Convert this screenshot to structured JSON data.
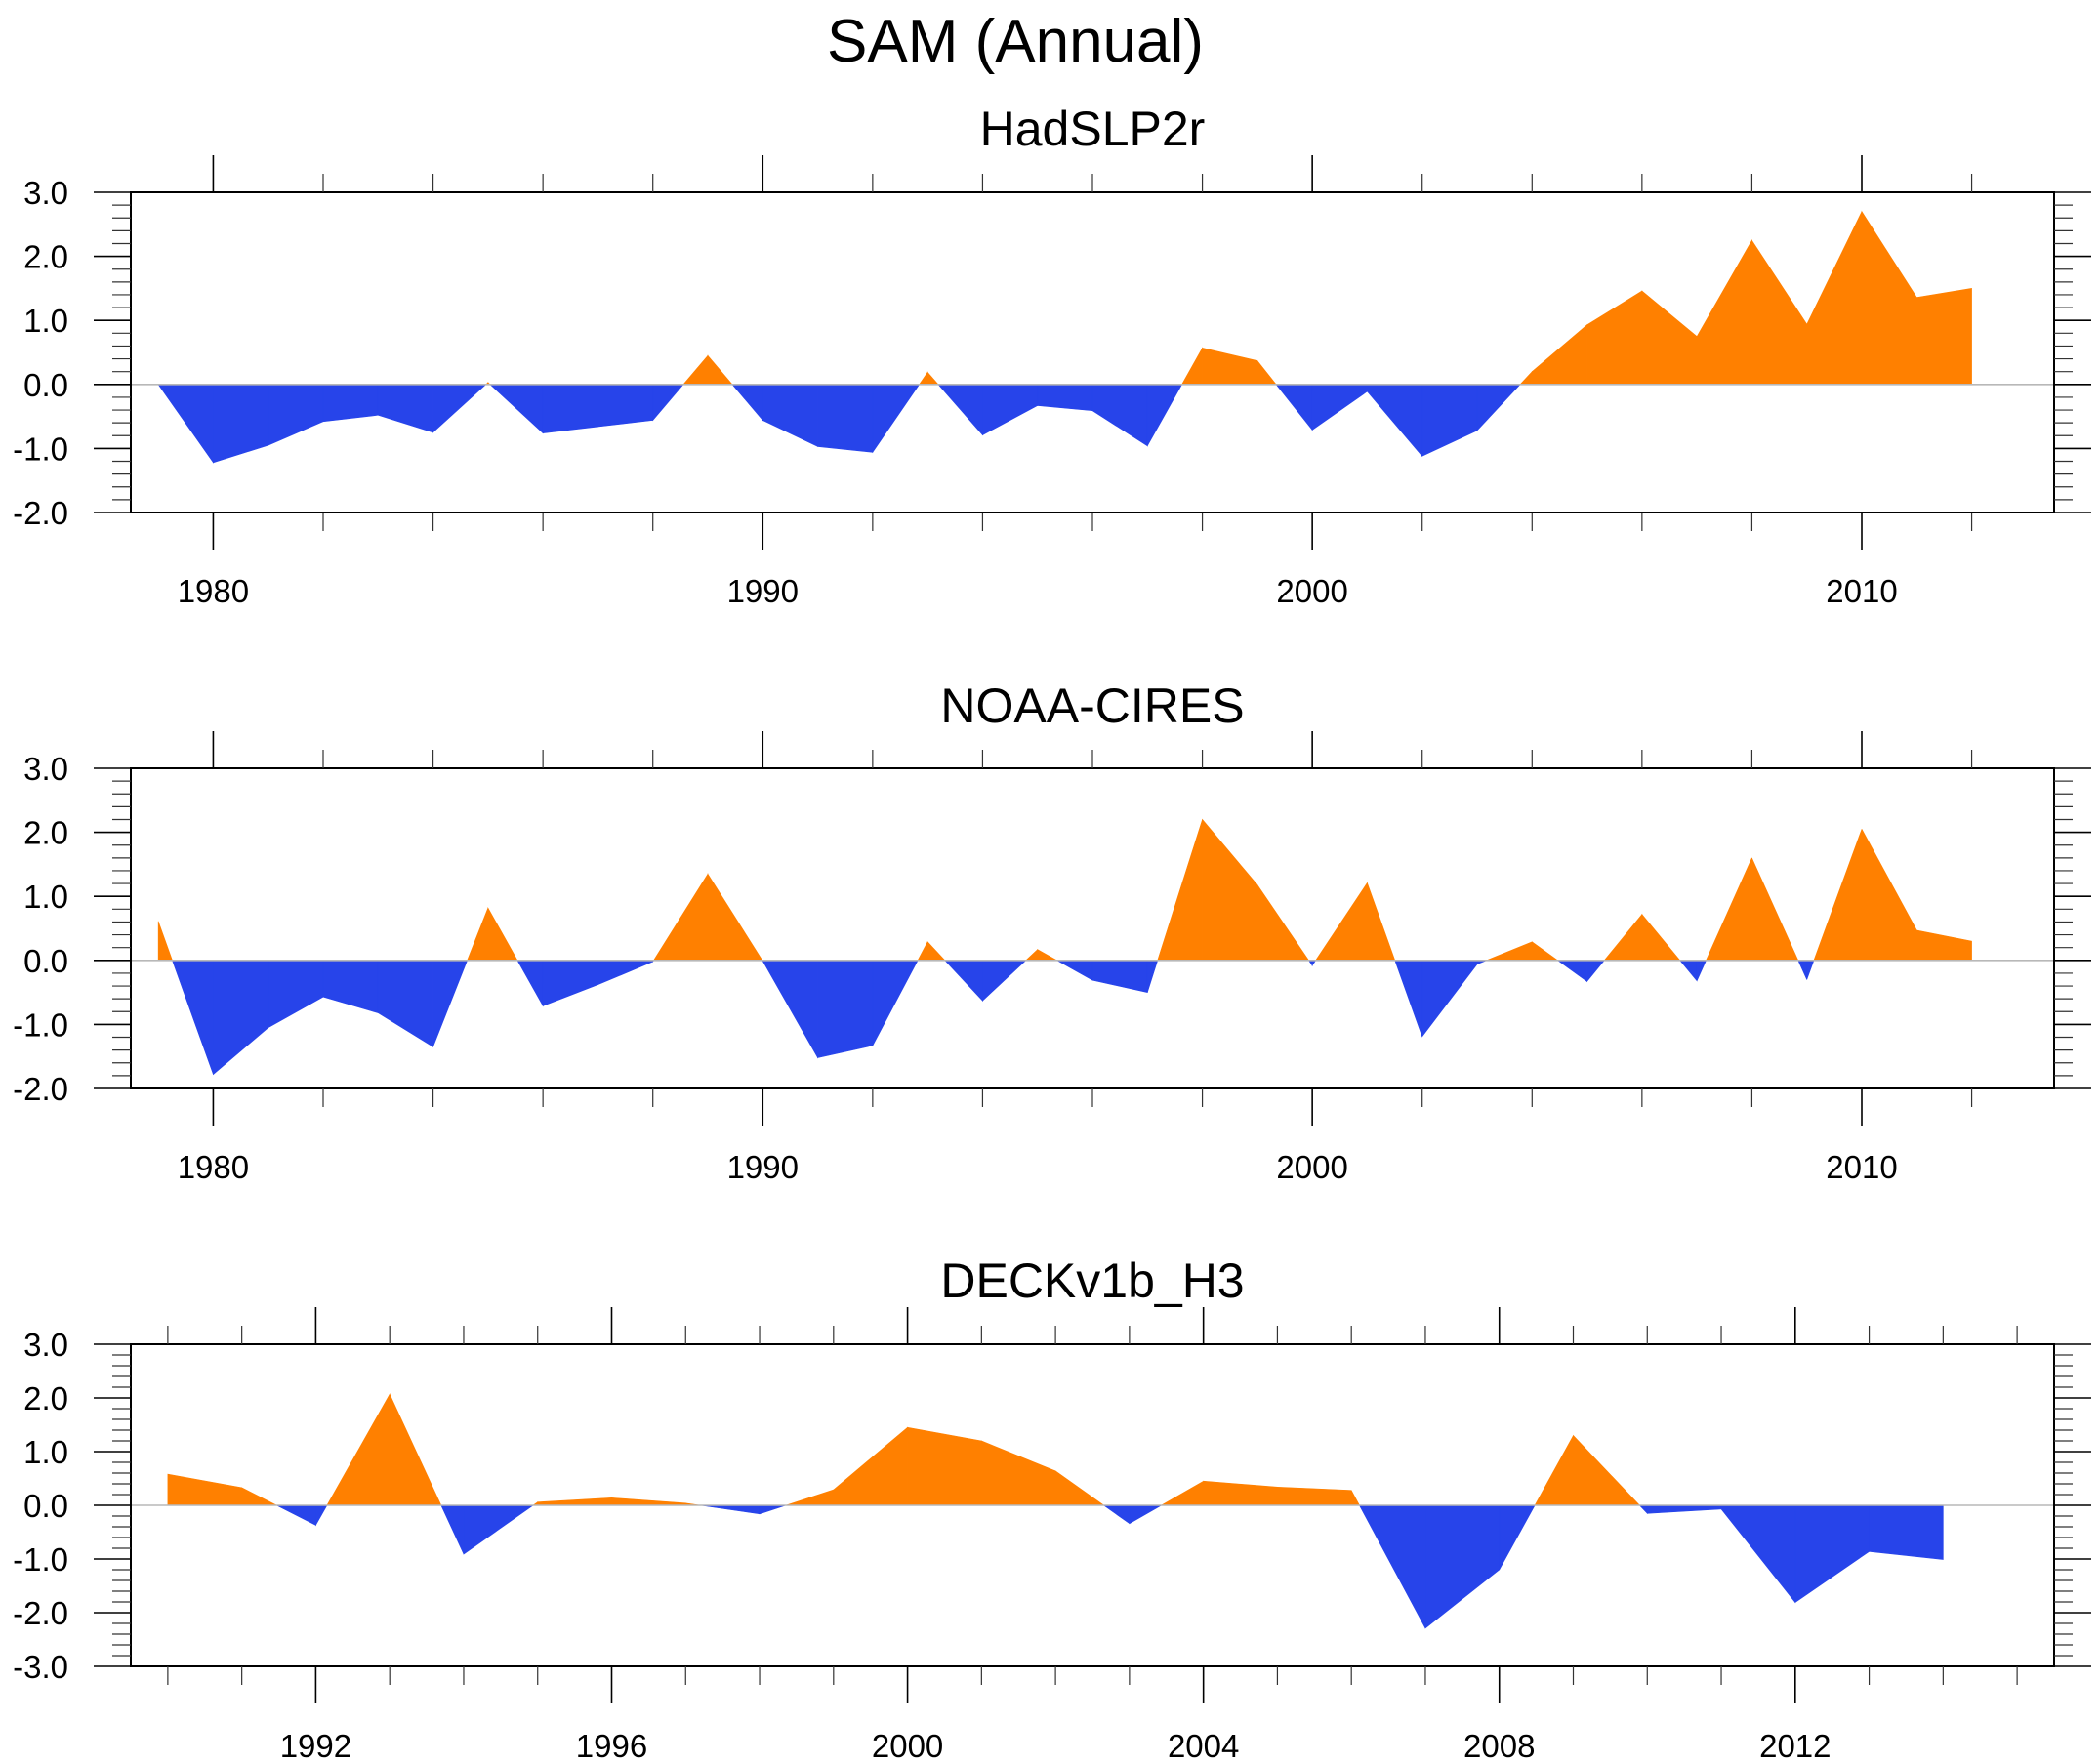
{
  "title": "SAM (Annual)",
  "colors": {
    "positive": "#FF8000",
    "negative": "#2744EA",
    "zero_line": "#B8B8B8",
    "axis": "#000000"
  },
  "chart_data": [
    {
      "type": "area",
      "title": "HadSLP2r",
      "xlabel": "",
      "ylabel": "",
      "xlim": [
        1978.5,
        2013.5
      ],
      "ylim": [
        -2,
        3
      ],
      "x_major_ticks": [
        1980,
        1990,
        2000,
        2010
      ],
      "x_minor_step": 2,
      "x_tick_labels": [
        "1980",
        "1990",
        "2000",
        "2010"
      ],
      "y_major_ticks": [
        3,
        2,
        1,
        0,
        -1,
        -2
      ],
      "y_tick_labels": [
        "3.0",
        "2.0",
        "1.0",
        "0.0",
        "-1.0",
        "-2.0"
      ],
      "y_minor_step": 0.2,
      "fill_above_zero": "positive",
      "fill_below_zero": "negative",
      "x": [
        1979,
        1980,
        1981,
        1982,
        1983,
        1984,
        1985,
        1986,
        1987,
        1988,
        1989,
        1990,
        1991,
        1992,
        1993,
        1994,
        1995,
        1996,
        1997,
        1998,
        1999,
        2000,
        2001,
        2002,
        2003,
        2004,
        2005,
        2006,
        2007,
        2008,
        2009,
        2010,
        2011,
        2012
      ],
      "values": [
        0.0,
        -1.22,
        -0.95,
        -0.58,
        -0.48,
        -0.75,
        0.03,
        -0.76,
        -0.66,
        -0.56,
        0.45,
        -0.56,
        -0.97,
        -1.06,
        0.19,
        -0.79,
        -0.33,
        -0.41,
        -0.96,
        0.57,
        0.37,
        -0.71,
        -0.11,
        -1.12,
        -0.72,
        0.2,
        0.93,
        1.46,
        0.75,
        2.25,
        0.94,
        2.7,
        1.36,
        1.5
      ]
    },
    {
      "type": "area",
      "title": "NOAA-CIRES",
      "xlabel": "",
      "ylabel": "",
      "xlim": [
        1978.5,
        2013.5
      ],
      "ylim": [
        -2,
        3
      ],
      "x_major_ticks": [
        1980,
        1990,
        2000,
        2010
      ],
      "x_minor_step": 2,
      "x_tick_labels": [
        "1980",
        "1990",
        "2000",
        "2010"
      ],
      "y_major_ticks": [
        3,
        2,
        1,
        0,
        -1,
        -2
      ],
      "y_tick_labels": [
        "3.0",
        "2.0",
        "1.0",
        "0.0",
        "-1.0",
        "-2.0"
      ],
      "y_minor_step": 0.2,
      "fill_above_zero": "positive",
      "fill_below_zero": "negative",
      "x": [
        1979,
        1980,
        1981,
        1982,
        1983,
        1984,
        1985,
        1986,
        1987,
        1988,
        1989,
        1990,
        1991,
        1992,
        1993,
        1994,
        1995,
        1996,
        1997,
        1998,
        1999,
        2000,
        2001,
        2002,
        2003,
        2004,
        2005,
        2006,
        2007,
        2008,
        2009,
        2010,
        2011,
        2012
      ],
      "values": [
        0.61,
        -1.78,
        -1.05,
        -0.57,
        -0.82,
        -1.35,
        0.82,
        -0.71,
        -0.38,
        -0.02,
        1.35,
        -0.01,
        -1.52,
        -1.33,
        0.29,
        -0.63,
        0.17,
        -0.31,
        -0.5,
        2.2,
        1.18,
        -0.08,
        1.21,
        -1.19,
        -0.06,
        0.29,
        -0.33,
        0.72,
        -0.32,
        1.6,
        -0.3,
        2.05,
        0.47,
        0.3
      ]
    },
    {
      "type": "area",
      "title": "DECKv1b_H3",
      "xlabel": "",
      "ylabel": "",
      "xlim": [
        1989.5,
        2015.5
      ],
      "ylim": [
        -3,
        3
      ],
      "x_major_ticks": [
        1992,
        1996,
        2000,
        2004,
        2008,
        2012
      ],
      "x_minor_step": 1,
      "x_tick_labels": [
        "1992",
        "1996",
        "2000",
        "2004",
        "2008",
        "2012"
      ],
      "y_major_ticks": [
        3,
        2,
        1,
        0,
        -1,
        -2,
        -3
      ],
      "y_tick_labels": [
        "3.0",
        "2.0",
        "1.0",
        "0.0",
        "-1.0",
        "-2.0",
        "-3.0"
      ],
      "y_minor_step": 0.2,
      "fill_above_zero": "positive",
      "fill_below_zero": "negative",
      "x": [
        1990,
        1991,
        1992,
        1993,
        1994,
        1995,
        1996,
        1997,
        1998,
        1999,
        2000,
        2001,
        2002,
        2003,
        2004,
        2005,
        2006,
        2007,
        2008,
        2009,
        2010,
        2011,
        2012,
        2013,
        2014
      ],
      "values": [
        0.58,
        0.33,
        -0.37,
        2.07,
        -0.91,
        0.06,
        0.14,
        0.04,
        -0.16,
        0.29,
        1.45,
        1.2,
        0.64,
        -0.34,
        0.45,
        0.34,
        0.28,
        -2.29,
        -1.2,
        1.3,
        -0.15,
        -0.07,
        -1.81,
        -0.86,
        -1.01
      ]
    }
  ]
}
